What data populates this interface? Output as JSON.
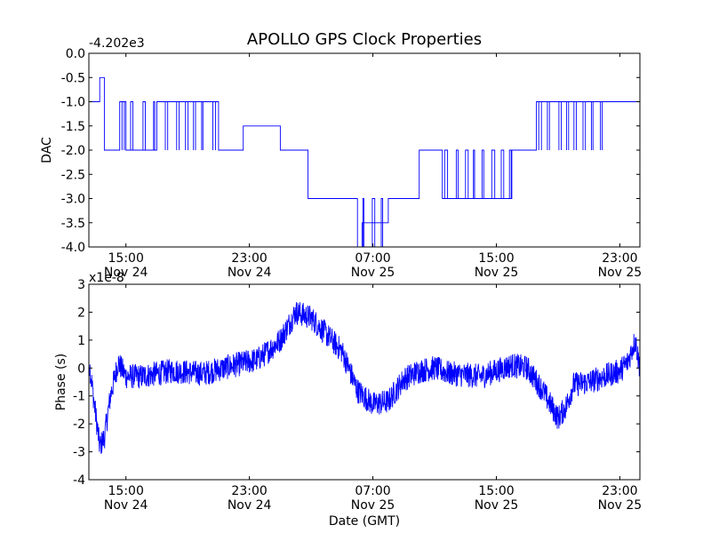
{
  "figure": {
    "title": "APOLLO GPS Clock Properties",
    "xlabel": "Date (GMT)"
  },
  "chart_data": [
    {
      "type": "line",
      "ylabel": "DAC",
      "offset_label": "-4.202e3",
      "ylim": [
        -4.0,
        0.0
      ],
      "yticks": [
        "0.0",
        "-0.5",
        "-1.0",
        "-1.5",
        "-2.0",
        "-2.5",
        "-3.0",
        "-3.5",
        "-4.0"
      ],
      "xticks": [
        {
          "time": "15:00",
          "date": "Nov 24"
        },
        {
          "time": "23:00",
          "date": "Nov 24"
        },
        {
          "time": "07:00",
          "date": "Nov 25"
        },
        {
          "time": "15:00",
          "date": "Nov 25"
        },
        {
          "time": "23:00",
          "date": "Nov 25"
        }
      ],
      "x_hours_range": [
        12.6,
        48.3
      ],
      "color": "#0000ff",
      "series": [
        {
          "x_hours": [
            12.6,
            13.3,
            13.3,
            13.6,
            13.6,
            14.6,
            14.6,
            15.0,
            15.0,
            17.0,
            17.0,
            21.0,
            21.0,
            22.6,
            22.6,
            25.0,
            25.0,
            26.8,
            26.8,
            30.0,
            30.0,
            30.3,
            30.3,
            32.0,
            32.0,
            34.0,
            34.0,
            35.5,
            35.5,
            40.0,
            40.0,
            41.6,
            41.6,
            42.5,
            42.5,
            48.3
          ],
          "values": [
            -1.0,
            -1.0,
            -0.5,
            -0.5,
            -2.0,
            -2.0,
            -1.0,
            -1.0,
            -2.0,
            -2.0,
            -1.0,
            -1.0,
            -2.0,
            -2.0,
            -1.5,
            -1.5,
            -2.0,
            -2.0,
            -3.0,
            -3.0,
            -4.0,
            -4.0,
            -3.5,
            -3.5,
            -3.0,
            -3.0,
            -2.0,
            -2.0,
            -3.0,
            -3.0,
            -2.0,
            -2.0,
            -1.0,
            -1.0,
            -1.0,
            -1.0
          ]
        }
      ]
    },
    {
      "type": "line",
      "ylabel": "Phase (s)",
      "offset_label": "x1e-8",
      "ylim": [
        -4,
        3
      ],
      "yticks": [
        "3",
        "2",
        "1",
        "0",
        "-1",
        "-2",
        "-3",
        "-4"
      ],
      "xticks": [
        {
          "time": "15:00",
          "date": "Nov 24"
        },
        {
          "time": "23:00",
          "date": "Nov 24"
        },
        {
          "time": "07:00",
          "date": "Nov 25"
        },
        {
          "time": "15:00",
          "date": "Nov 25"
        },
        {
          "time": "23:00",
          "date": "Nov 25"
        }
      ],
      "x_hours_range": [
        12.6,
        48.3
      ],
      "color": "#0000ff",
      "series": [
        {
          "x_hours": [
            12.6,
            13.0,
            13.3,
            13.6,
            14.0,
            14.5,
            15.0,
            16.0,
            18.0,
            20.0,
            22.0,
            23.5,
            24.0,
            25.0,
            26.0,
            27.0,
            28.0,
            29.0,
            30.0,
            31.0,
            32.0,
            33.0,
            34.0,
            35.0,
            36.0,
            38.0,
            40.0,
            41.0,
            42.0,
            43.0,
            43.5,
            44.0,
            45.0,
            46.0,
            47.0,
            47.5,
            48.0,
            48.3
          ],
          "values": [
            0.3,
            -1.5,
            -2.8,
            -2.5,
            -1.0,
            0.2,
            -0.3,
            -0.3,
            -0.1,
            -0.2,
            0.1,
            0.3,
            0.5,
            1.0,
            2.0,
            1.8,
            1.2,
            0.6,
            -0.8,
            -1.3,
            -1.2,
            -0.4,
            -0.1,
            0.0,
            -0.2,
            -0.3,
            0.1,
            0.0,
            -0.8,
            -1.8,
            -1.4,
            -0.6,
            -0.5,
            -0.3,
            -0.1,
            0.2,
            1.0,
            0.0
          ]
        }
      ]
    }
  ]
}
